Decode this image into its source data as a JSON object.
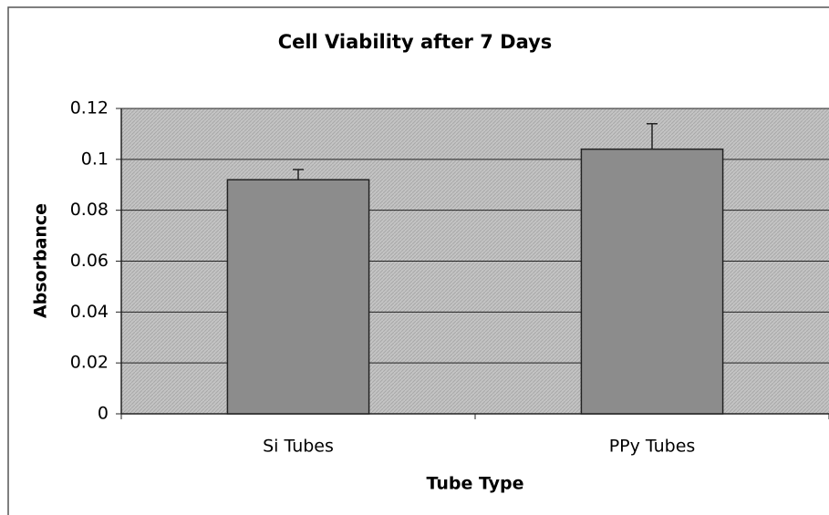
{
  "chart_data": {
    "type": "bar",
    "title": "Cell Viability after 7 Days",
    "x_label": "Tube Type",
    "y_label": "Absorbance",
    "categories": [
      "Si Tubes",
      "PPy Tubes"
    ],
    "values": [
      0.092,
      0.104
    ],
    "errors": [
      0.004,
      0.01
    ],
    "color": "#8c8c8c",
    "ylim": [
      0,
      0.12
    ],
    "yticks": [
      0,
      0.02,
      0.04,
      0.06,
      0.08,
      0.1,
      0.12
    ],
    "grid": true
  }
}
